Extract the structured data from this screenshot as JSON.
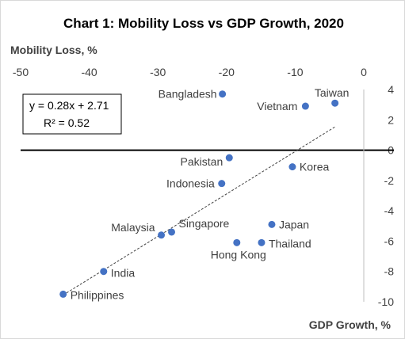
{
  "chart_data": {
    "type": "scatter",
    "title": "Chart 1: Mobility Loss vs GDP Growth, 2020",
    "xlabel": "GDP Growth, %",
    "ylabel": "Mobility Loss, %",
    "xlim": [
      -50,
      0
    ],
    "ylim": [
      -10,
      4
    ],
    "x_ticks": [
      -50,
      -40,
      -30,
      -20,
      -10,
      0
    ],
    "y_ticks": [
      4,
      2,
      0,
      -2,
      -4,
      -6,
      -8,
      -10
    ],
    "x_tick_labels": [
      "-50",
      "-40",
      "-30",
      "-20",
      "-10",
      "0"
    ],
    "y_tick_labels": [
      "4",
      "2",
      "0",
      "-2",
      "-4",
      "-6",
      "-8",
      "-10"
    ],
    "x_axis_position": "top",
    "y_axis_position": "right",
    "grid": false,
    "marker_color": "#4472c4",
    "points": [
      {
        "label": "Bangladesh",
        "x": -20.6,
        "y": 3.7
      },
      {
        "label": "Taiwan",
        "x": -4.2,
        "y": 3.1
      },
      {
        "label": "Vietnam",
        "x": -8.5,
        "y": 2.9
      },
      {
        "label": "Pakistan",
        "x": -19.6,
        "y": -0.5
      },
      {
        "label": "Korea",
        "x": -10.4,
        "y": -1.1
      },
      {
        "label": "Indonesia",
        "x": -20.7,
        "y": -2.2
      },
      {
        "label": "Japan",
        "x": -13.4,
        "y": -4.9
      },
      {
        "label": "Singapore",
        "x": -28.0,
        "y": -5.4
      },
      {
        "label": "Malaysia",
        "x": -29.5,
        "y": -5.6
      },
      {
        "label": "Hong Kong",
        "x": -18.5,
        "y": -6.1
      },
      {
        "label": "Thailand",
        "x": -14.9,
        "y": -6.1
      },
      {
        "label": "India",
        "x": -37.9,
        "y": -8.0
      },
      {
        "label": "Philippines",
        "x": -43.8,
        "y": -9.5
      }
    ],
    "trendline": {
      "slope": 0.28,
      "intercept": 2.71,
      "x_range": [
        -43.8,
        -4.2
      ],
      "equation": "y = 0.28x + 2.71",
      "r_squared": "R² = 0.52"
    }
  }
}
